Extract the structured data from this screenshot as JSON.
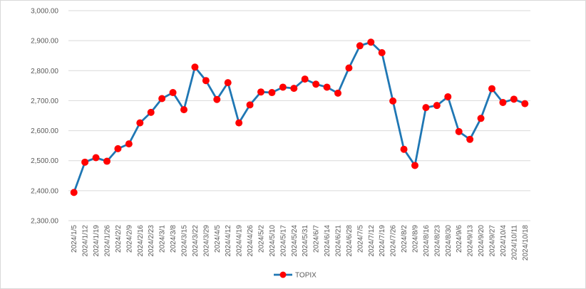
{
  "chart_data": {
    "type": "line",
    "title": "",
    "xlabel": "",
    "ylabel": "",
    "ylim": [
      2300,
      3000
    ],
    "yticks": [
      "2,300.00",
      "2,400.00",
      "2,500.00",
      "2,600.00",
      "2,700.00",
      "2,800.00",
      "2,900.00",
      "3,000.00"
    ],
    "ytick_values": [
      2300,
      2400,
      2500,
      2600,
      2700,
      2800,
      2900,
      3000
    ],
    "grid": "horizontal",
    "legend": "bottom",
    "line_color": "#1f77b4",
    "marker_color": "#ff0000",
    "categories": [
      "2024/1/5",
      "2024/1/12",
      "2024/1/19",
      "2024/1/26",
      "2024/2/2",
      "2024/2/9",
      "2024/2/16",
      "2024/2/23",
      "2024/3/1",
      "2024/3/8",
      "2024/3/15",
      "2024/3/22",
      "2024/3/29",
      "2024/4/5",
      "2024/4/12",
      "2024/4/19",
      "2024/4/26",
      "2024/5/2",
      "2024/5/10",
      "2024/5/17",
      "2024/5/24",
      "2024/5/31",
      "2024/6/7",
      "2024/6/14",
      "2024/6/21",
      "2024/6/28",
      "2024/7/5",
      "2024/7/12",
      "2024/7/19",
      "2024/7/26",
      "2024/8/2",
      "2024/8/9",
      "2024/8/16",
      "2024/8/23",
      "2024/8/30",
      "2024/9/6",
      "2024/9/13",
      "2024/9/20",
      "2024/9/27",
      "2024/10/4",
      "2024/10/11",
      "2024/10/18"
    ],
    "series": [
      {
        "name": "TOPIX",
        "values": [
          2394,
          2495,
          2510,
          2498,
          2540,
          2556,
          2626,
          2661,
          2707,
          2727,
          2670,
          2812,
          2767,
          2704,
          2760,
          2626,
          2686,
          2729,
          2727,
          2745,
          2741,
          2772,
          2755,
          2745,
          2725,
          2809,
          2883,
          2895,
          2860,
          2699,
          2538,
          2484,
          2677,
          2684,
          2713,
          2597,
          2571,
          2641,
          2740,
          2694,
          2705,
          2690
        ]
      }
    ]
  }
}
